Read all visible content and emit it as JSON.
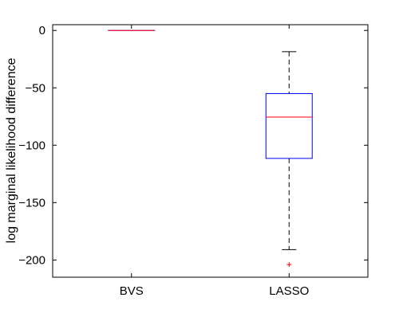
{
  "chart_data": {
    "type": "box",
    "title": "",
    "xlabel": "",
    "ylabel": "log marginal likelihood difference",
    "categories": [
      "BVS",
      "LASSO"
    ],
    "ylim": [
      -215,
      5
    ],
    "yticks": [
      0,
      -50,
      -100,
      -150,
      -200
    ],
    "ytick_labels": [
      "0",
      "−50",
      "−100",
      "−150",
      "−200"
    ],
    "grid": false,
    "boxes": [
      {
        "name": "BVS",
        "q1": 0,
        "median": 0,
        "q3": 0,
        "whisker_low": 0,
        "whisker_high": 0,
        "outliers": []
      },
      {
        "name": "LASSO",
        "q1": -111.5,
        "median": -75.5,
        "q3": -55,
        "whisker_low": -191,
        "whisker_high": -18.5,
        "outliers": [
          -204
        ]
      }
    ],
    "colors": {
      "box": "#0000ff",
      "median": "#ff0000",
      "whisker": "#000000",
      "outlier": "#ff0000",
      "axes": "#000000"
    }
  }
}
